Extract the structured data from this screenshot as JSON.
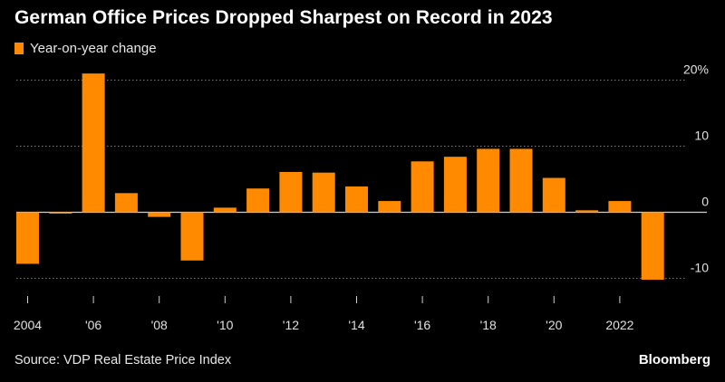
{
  "header": {
    "title": "German Office Prices Dropped Sharpest on Record in 2023"
  },
  "footer": {
    "source": "Source: VDP Real Estate Price Index",
    "brand": "Bloomberg"
  },
  "colors": {
    "background": "#000000",
    "bar": "#FF8A00",
    "grid": "#777777",
    "text": "#FFFFFF"
  },
  "chart_data": {
    "type": "bar",
    "title": "German Office Prices Dropped Sharpest on Record in 2023",
    "legend": [
      "Year-on-year change"
    ],
    "legend_position": "top-left",
    "series": [
      {
        "name": "Year-on-year change",
        "values": [
          -7.8,
          -0.2,
          21.0,
          2.9,
          -0.7,
          -7.3,
          0.7,
          3.6,
          6.1,
          6.0,
          3.9,
          1.7,
          7.7,
          8.4,
          9.6,
          9.6,
          5.2,
          0.3,
          1.7,
          -10.2
        ]
      }
    ],
    "categories": [
      2004,
      2005,
      2006,
      2007,
      2008,
      2009,
      2010,
      2011,
      2012,
      2013,
      2014,
      2015,
      2016,
      2017,
      2018,
      2019,
      2020,
      2021,
      2022,
      2023
    ],
    "x_tick_labels": [
      {
        "year": 2004,
        "label": "2004"
      },
      {
        "year": 2006,
        "label": "'06"
      },
      {
        "year": 2008,
        "label": "'08"
      },
      {
        "year": 2010,
        "label": "'10"
      },
      {
        "year": 2012,
        "label": "'12"
      },
      {
        "year": 2014,
        "label": "'14"
      },
      {
        "year": 2016,
        "label": "'16"
      },
      {
        "year": 2018,
        "label": "'18"
      },
      {
        "year": 2020,
        "label": "'20"
      },
      {
        "year": 2022,
        "label": "2022"
      }
    ],
    "y_ticks": [
      {
        "value": 20,
        "label": "20%"
      },
      {
        "value": 10,
        "label": "10"
      },
      {
        "value": 0,
        "label": "0"
      },
      {
        "value": -10,
        "label": "-10"
      }
    ],
    "ylim": [
      -12,
      22
    ],
    "xlabel": "",
    "ylabel": "",
    "grid": true,
    "y_axis_side": "right"
  }
}
